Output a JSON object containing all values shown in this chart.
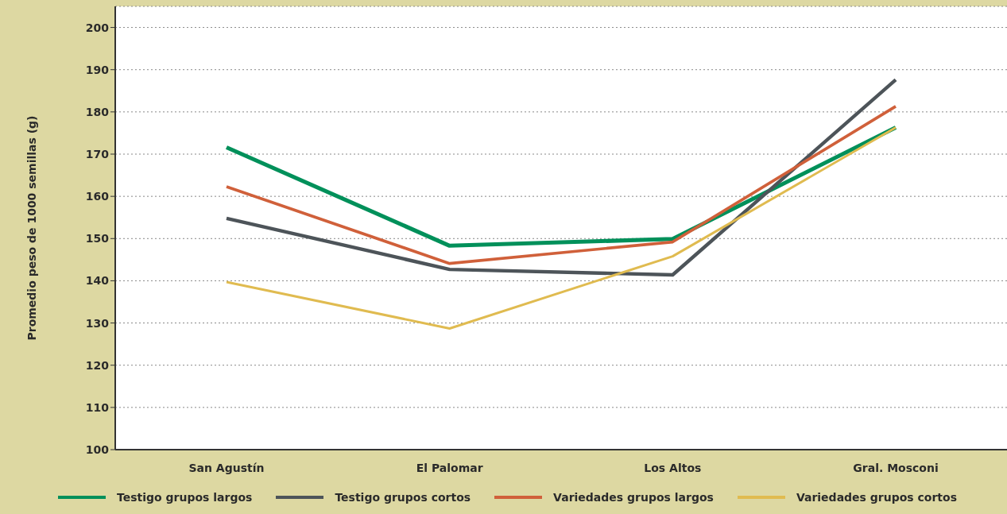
{
  "chart_data": {
    "type": "line",
    "ylabel": "Promedio peso de 1000 semillas (g)",
    "categories": [
      "San Agustín",
      "El Palomar",
      "Los Altos",
      "Gral. Mosconi"
    ],
    "series": [
      {
        "name": "Testigo grupos largos",
        "color": "#00905a",
        "values": [
          171.6,
          148.3,
          149.9,
          176.3
        ]
      },
      {
        "name": "Testigo grupos cortos",
        "color": "#4d5459",
        "values": [
          154.8,
          142.7,
          141.4,
          187.6
        ]
      },
      {
        "name": "Variedades grupos largos",
        "color": "#d0603a",
        "values": [
          162.3,
          144.1,
          149.2,
          181.3
        ]
      },
      {
        "name": "Variedades grupos cortos",
        "color": "#e0bb50",
        "values": [
          139.7,
          128.7,
          145.8,
          176.3
        ]
      }
    ],
    "ylim": [
      100,
      205
    ],
    "yticks": [
      100,
      110,
      120,
      130,
      140,
      150,
      160,
      170,
      180,
      190,
      200
    ],
    "grid": "y",
    "legend": "bottom",
    "marker": "none",
    "line_style": "solid"
  }
}
